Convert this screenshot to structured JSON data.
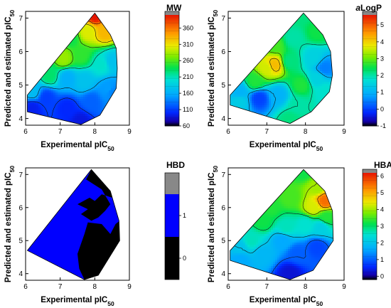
{
  "chart_data": [
    {
      "type": "heatmap",
      "panel": "top-left",
      "xlabel": "Experimental pIC50",
      "ylabel": "Predicted and estimated pIC50",
      "xlim": [
        6,
        9
      ],
      "ylim": [
        3.8,
        7.2
      ],
      "xticks": [
        "6",
        "7",
        "8",
        "9"
      ],
      "yticks": [
        "4",
        "5",
        "6",
        "7"
      ],
      "hull": [
        [
          8.0,
          7.15
        ],
        [
          8.45,
          6.5
        ],
        [
          8.62,
          6.1
        ],
        [
          8.65,
          5.5
        ],
        [
          8.62,
          4.9
        ],
        [
          8.15,
          4.1
        ],
        [
          7.6,
          3.82
        ],
        [
          6.05,
          4.2
        ],
        [
          6.05,
          4.7
        ]
      ],
      "colorbar": {
        "title": "MW",
        "title_italic_prefix": "",
        "min": 60,
        "max": 400,
        "ticks": [
          "60",
          "110",
          "160",
          "210",
          "260",
          "310",
          "360"
        ],
        "tick_values": [
          60,
          110,
          160,
          210,
          260,
          310,
          360
        ],
        "style": "rainbow"
      },
      "field_points": [
        [
          8.0,
          7.1,
          400
        ],
        [
          8.3,
          6.6,
          330
        ],
        [
          7.8,
          6.6,
          300
        ],
        [
          7.3,
          6.4,
          240
        ],
        [
          7.1,
          5.8,
          280
        ],
        [
          7.6,
          5.9,
          250
        ],
        [
          8.2,
          5.6,
          205
        ],
        [
          8.5,
          5.7,
          175
        ],
        [
          6.7,
          5.3,
          230
        ],
        [
          7.2,
          5.2,
          160
        ],
        [
          7.7,
          5.1,
          175
        ],
        [
          8.4,
          4.9,
          150
        ],
        [
          6.2,
          4.8,
          170
        ],
        [
          6.6,
          4.6,
          110
        ],
        [
          7.2,
          4.3,
          100
        ],
        [
          7.9,
          4.5,
          125
        ],
        [
          8.5,
          4.8,
          140
        ],
        [
          7.6,
          3.9,
          90
        ],
        [
          6.2,
          4.3,
          95
        ]
      ],
      "contour_levels": [
        110,
        160,
        210,
        260,
        310,
        360
      ]
    },
    {
      "type": "heatmap",
      "panel": "top-right",
      "xlabel": "Experimental pIC50",
      "ylabel": "Predicted and estimated pIC50",
      "xlim": [
        6,
        9
      ],
      "ylim": [
        3.8,
        7.2
      ],
      "xticks": [
        "6",
        "7",
        "8",
        "9"
      ],
      "yticks": [
        "4",
        "5",
        "6",
        "7"
      ],
      "hull": [
        [
          7.95,
          7.15
        ],
        [
          8.45,
          6.5
        ],
        [
          8.65,
          6.0
        ],
        [
          8.7,
          5.3
        ],
        [
          8.62,
          4.8
        ],
        [
          8.15,
          4.2
        ],
        [
          7.6,
          3.85
        ],
        [
          6.05,
          4.4
        ],
        [
          6.05,
          4.7
        ]
      ],
      "colorbar": {
        "title": "LogP",
        "title_italic_prefix": "a",
        "min": -1,
        "max": 5.6,
        "ticks": [
          "-1",
          "0",
          "1",
          "2",
          "3",
          "4",
          "5"
        ],
        "tick_values": [
          -1,
          0,
          1,
          2,
          3,
          4,
          5
        ],
        "style": "rainbow"
      },
      "field_points": [
        [
          7.9,
          7.1,
          2.2
        ],
        [
          8.3,
          6.6,
          2.5
        ],
        [
          7.7,
          6.4,
          2.0
        ],
        [
          7.2,
          6.2,
          2.8
        ],
        [
          7.2,
          5.6,
          4.2
        ],
        [
          7.0,
          5.5,
          3.6
        ],
        [
          7.6,
          5.7,
          2.2
        ],
        [
          8.2,
          5.8,
          1.5
        ],
        [
          8.5,
          5.5,
          0.5
        ],
        [
          8.3,
          5.2,
          1.5
        ],
        [
          7.9,
          5.0,
          2.6
        ],
        [
          6.7,
          5.1,
          2.6
        ],
        [
          6.3,
          4.8,
          1.0
        ],
        [
          6.8,
          4.6,
          0.0
        ],
        [
          7.3,
          4.7,
          1.0
        ],
        [
          7.8,
          4.4,
          2.0
        ],
        [
          8.5,
          4.8,
          1.8
        ],
        [
          7.6,
          3.95,
          2.2
        ],
        [
          6.3,
          4.5,
          1.4
        ]
      ],
      "contour_levels": [
        0,
        1,
        2,
        3,
        4
      ]
    },
    {
      "type": "heatmap",
      "panel": "bottom-left",
      "xlabel": "Experimental pIC50",
      "ylabel": "Predicted and estimated pIC50",
      "xlim": [
        6,
        9
      ],
      "ylim": [
        3.8,
        7.2
      ],
      "xticks": [
        "6",
        "7",
        "8",
        "9"
      ],
      "yticks": [
        "4",
        "5",
        "6",
        "7"
      ],
      "hull": [
        [
          7.9,
          7.15
        ],
        [
          8.45,
          6.5
        ],
        [
          8.7,
          5.6
        ],
        [
          8.72,
          5.0
        ],
        [
          8.1,
          3.95
        ],
        [
          7.7,
          3.82
        ],
        [
          6.05,
          4.7
        ]
      ],
      "colorbar": {
        "title": "HBD",
        "title_italic_prefix": "",
        "min": -0.5,
        "max": 2.0,
        "ticks": [
          "0",
          "1"
        ],
        "tick_values": [
          0,
          1
        ],
        "style": "discrete",
        "bands": [
          {
            "from": -0.5,
            "to": 0.5,
            "color": "#000000"
          },
          {
            "from": 0.5,
            "to": 1.5,
            "color": "#0000ff"
          },
          {
            "from": 1.5,
            "to": 2.0,
            "color": "#888888"
          }
        ]
      },
      "hull_color": "#0000ff",
      "regions": [
        {
          "color": "#000000",
          "points": [
            [
              7.9,
              7.15
            ],
            [
              8.45,
              6.5
            ],
            [
              8.5,
              6.3
            ],
            [
              8.2,
              6.4
            ],
            [
              8.0,
              6.2
            ],
            [
              7.85,
              6.3
            ],
            [
              7.5,
              6.1
            ],
            [
              7.8,
              5.95
            ],
            [
              7.6,
              5.8
            ],
            [
              7.9,
              5.6
            ],
            [
              8.1,
              5.7
            ],
            [
              8.3,
              5.9
            ],
            [
              8.45,
              6.1
            ],
            [
              8.2,
              6.55
            ],
            [
              7.75,
              6.85
            ]
          ]
        },
        {
          "color": "#000000",
          "points": [
            [
              8.72,
              5.6
            ],
            [
              8.72,
              5.0
            ],
            [
              8.1,
              3.95
            ],
            [
              7.7,
              3.82
            ],
            [
              7.55,
              4.15
            ],
            [
              7.5,
              4.6
            ],
            [
              7.7,
              5.2
            ],
            [
              7.8,
              5.55
            ],
            [
              8.2,
              5.5
            ],
            [
              8.45,
              5.2
            ],
            [
              8.6,
              5.5
            ]
          ]
        }
      ]
    },
    {
      "type": "heatmap",
      "panel": "bottom-right",
      "xlabel": "Experimental pIC50",
      "ylabel": "Predicted and estimated pIC50",
      "xlim": [
        6,
        9
      ],
      "ylim": [
        3.8,
        7.2
      ],
      "xticks": [
        "6",
        "7",
        "8",
        "9"
      ],
      "yticks": [
        "4",
        "5",
        "6",
        "7"
      ],
      "hull": [
        [
          7.95,
          7.15
        ],
        [
          8.5,
          6.5
        ],
        [
          8.7,
          5.9
        ],
        [
          8.72,
          5.0
        ],
        [
          8.2,
          4.1
        ],
        [
          7.6,
          3.82
        ],
        [
          6.05,
          4.4
        ],
        [
          6.05,
          4.7
        ]
      ],
      "colorbar": {
        "title": "HBA",
        "title_italic_prefix": "",
        "min": -0.2,
        "max": 6.2,
        "ticks": [
          "0",
          "1",
          "2",
          "3",
          "4",
          "5",
          "6"
        ],
        "tick_values": [
          0,
          1,
          2,
          3,
          4,
          5,
          6
        ],
        "style": "rainbow"
      },
      "field_points": [
        [
          7.95,
          7.1,
          3.2
        ],
        [
          8.3,
          6.6,
          4.0
        ],
        [
          8.5,
          6.2,
          5.5
        ],
        [
          8.2,
          6.0,
          4.3
        ],
        [
          7.6,
          6.3,
          3.5
        ],
        [
          7.1,
          6.0,
          3.3
        ],
        [
          6.9,
          5.6,
          3.2
        ],
        [
          7.5,
          5.4,
          2.6
        ],
        [
          8.0,
          5.5,
          2.5
        ],
        [
          8.4,
          5.4,
          2.2
        ],
        [
          7.4,
          5.0,
          1.6
        ],
        [
          6.6,
          5.0,
          2.6
        ],
        [
          6.3,
          4.8,
          2.0
        ],
        [
          6.9,
          4.6,
          1.8
        ],
        [
          7.8,
          4.6,
          1.0
        ],
        [
          8.3,
          4.8,
          0.8
        ],
        [
          7.6,
          4.0,
          0.3
        ],
        [
          6.3,
          4.4,
          1.6
        ],
        [
          8.55,
          5.7,
          3.3
        ]
      ],
      "contour_levels": [
        1,
        2,
        3,
        4,
        5
      ]
    }
  ]
}
